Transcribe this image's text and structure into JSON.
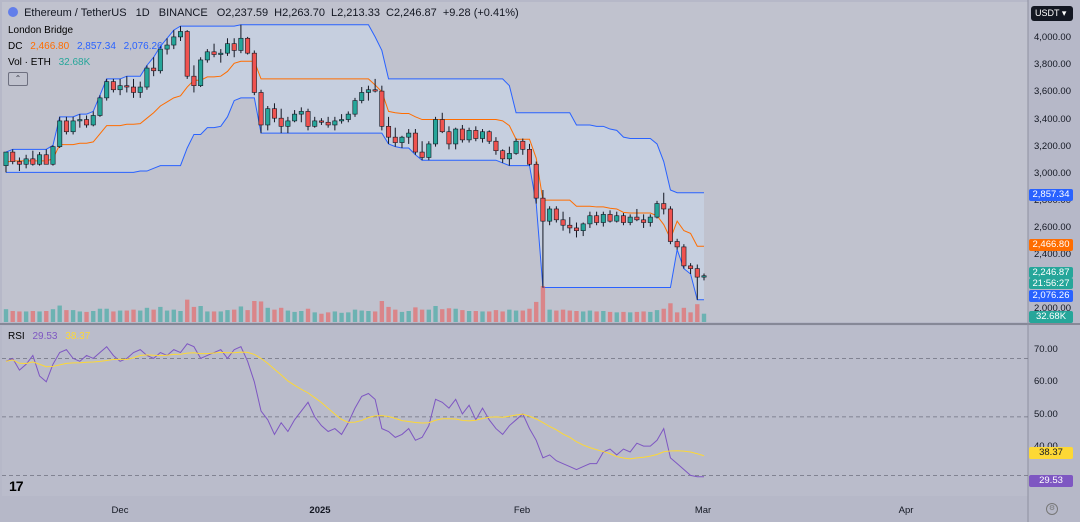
{
  "header": {
    "symbol": "Ethereum / TetherUS",
    "interval": "1D",
    "exchange": "BINANCE",
    "open": "O2,237.59",
    "high": "H2,263.70",
    "low": "L2,213.33",
    "close": "C2,246.87",
    "change": "+9.28 (+0.41%)",
    "change_color": "#089981",
    "quote_currency": "USDT",
    "icon": "ethereum-logo-icon"
  },
  "legend": {
    "line1": "London Bridge",
    "dc_label": "DC",
    "dc_basis": "2,466.80",
    "dc_upper": "2,857.34",
    "dc_lower": "2,076.26",
    "vol_label": "Vol · ETH",
    "vol_value": "32.68K"
  },
  "price_axis": {
    "ticks": [
      "4,000.00",
      "3,800.00",
      "3,600.00",
      "3,400.00",
      "3,200.00",
      "3,000.00",
      "2,800.00",
      "2,600.00",
      "2,400.00",
      "2,200.00",
      "2,000.00"
    ],
    "badges": {
      "upper": "2,857.34",
      "basis": "2,466.80",
      "last_price": "2,246.87",
      "countdown": "21:56:27",
      "lower": "2,076.26",
      "volume": "32.68K"
    }
  },
  "rsi": {
    "label": "RSI",
    "value": "29.53",
    "ma_value": "38.37",
    "ticks": [
      "70.00",
      "60.00",
      "50.00",
      "40.00"
    ]
  },
  "time_axis": {
    "labels": [
      "Dec",
      "2025",
      "Feb",
      "Mar",
      "Apr"
    ]
  },
  "colors": {
    "up": "#26a69a",
    "down": "#ef5350",
    "dc_upper": "#2962ff",
    "dc_lower": "#2962ff",
    "dc_basis": "#ff6d00",
    "dc_fill": "#c8d3e4",
    "rsi_line": "#7e57c2",
    "rsi_ma": "#fdd835",
    "rsi_badge": "#7e57c2",
    "rsi_ma_badge": "#fdd835"
  },
  "chart_data": {
    "type": "candlestick",
    "symbol": "ETH/USDT",
    "interval": "1D",
    "ylim": [
      1950,
      4120
    ],
    "candles_note": "approximate daily OHLC read from the chart, Nov 3 2024 - Feb 28 2025",
    "candles": [
      [
        3060,
        3160,
        3010,
        3160
      ],
      [
        3160,
        3180,
        3070,
        3090
      ],
      [
        3090,
        3120,
        3020,
        3070
      ],
      [
        3070,
        3140,
        3040,
        3110
      ],
      [
        3110,
        3170,
        3060,
        3070
      ],
      [
        3070,
        3160,
        3060,
        3140
      ],
      [
        3140,
        3180,
        3070,
        3070
      ],
      [
        3070,
        3210,
        3060,
        3200
      ],
      [
        3200,
        3420,
        3190,
        3390
      ],
      [
        3390,
        3420,
        3290,
        3310
      ],
      [
        3310,
        3420,
        3290,
        3390
      ],
      [
        3390,
        3440,
        3340,
        3400
      ],
      [
        3400,
        3430,
        3340,
        3360
      ],
      [
        3360,
        3460,
        3350,
        3430
      ],
      [
        3430,
        3580,
        3420,
        3560
      ],
      [
        3560,
        3700,
        3540,
        3680
      ],
      [
        3680,
        3700,
        3600,
        3620
      ],
      [
        3620,
        3700,
        3580,
        3650
      ],
      [
        3650,
        3720,
        3600,
        3640
      ],
      [
        3640,
        3700,
        3560,
        3600
      ],
      [
        3600,
        3680,
        3560,
        3640
      ],
      [
        3640,
        3800,
        3620,
        3780
      ],
      [
        3780,
        3860,
        3720,
        3760
      ],
      [
        3760,
        3940,
        3740,
        3920
      ],
      [
        3920,
        4000,
        3880,
        3950
      ],
      [
        3950,
        4060,
        3920,
        4010
      ],
      [
        4010,
        4090,
        3980,
        4050
      ],
      [
        4050,
        4060,
        3700,
        3720
      ],
      [
        3720,
        3800,
        3600,
        3650
      ],
      [
        3650,
        3860,
        3640,
        3840
      ],
      [
        3840,
        3920,
        3820,
        3900
      ],
      [
        3900,
        3960,
        3860,
        3880
      ],
      [
        3880,
        3920,
        3820,
        3890
      ],
      [
        3890,
        4000,
        3870,
        3960
      ],
      [
        3960,
        4000,
        3860,
        3910
      ],
      [
        3910,
        4100,
        3890,
        4000
      ],
      [
        4000,
        4010,
        3880,
        3890
      ],
      [
        3890,
        3910,
        3580,
        3600
      ],
      [
        3600,
        3620,
        3300,
        3360
      ],
      [
        3360,
        3500,
        3320,
        3480
      ],
      [
        3480,
        3520,
        3380,
        3410
      ],
      [
        3410,
        3480,
        3300,
        3350
      ],
      [
        3350,
        3420,
        3300,
        3390
      ],
      [
        3390,
        3470,
        3380,
        3440
      ],
      [
        3440,
        3490,
        3380,
        3460
      ],
      [
        3460,
        3480,
        3320,
        3350
      ],
      [
        3350,
        3420,
        3340,
        3390
      ],
      [
        3390,
        3410,
        3360,
        3380
      ],
      [
        3380,
        3420,
        3340,
        3360
      ],
      [
        3360,
        3420,
        3320,
        3390
      ],
      [
        3390,
        3440,
        3370,
        3400
      ],
      [
        3400,
        3460,
        3380,
        3440
      ],
      [
        3440,
        3560,
        3420,
        3540
      ],
      [
        3540,
        3640,
        3520,
        3600
      ],
      [
        3600,
        3650,
        3540,
        3620
      ],
      [
        3620,
        3700,
        3600,
        3610
      ],
      [
        3610,
        3650,
        3320,
        3350
      ],
      [
        3350,
        3420,
        3220,
        3270
      ],
      [
        3270,
        3340,
        3200,
        3230
      ],
      [
        3230,
        3280,
        3190,
        3270
      ],
      [
        3270,
        3330,
        3220,
        3300
      ],
      [
        3300,
        3330,
        3140,
        3160
      ],
      [
        3160,
        3240,
        3100,
        3120
      ],
      [
        3120,
        3240,
        3100,
        3220
      ],
      [
        3220,
        3420,
        3200,
        3400
      ],
      [
        3400,
        3450,
        3300,
        3310
      ],
      [
        3310,
        3350,
        3180,
        3220
      ],
      [
        3220,
        3340,
        3180,
        3330
      ],
      [
        3330,
        3360,
        3230,
        3250
      ],
      [
        3250,
        3340,
        3230,
        3320
      ],
      [
        3320,
        3350,
        3240,
        3260
      ],
      [
        3260,
        3330,
        3230,
        3310
      ],
      [
        3310,
        3320,
        3220,
        3240
      ],
      [
        3240,
        3270,
        3140,
        3170
      ],
      [
        3170,
        3180,
        3080,
        3110
      ],
      [
        3110,
        3200,
        3060,
        3150
      ],
      [
        3150,
        3260,
        3140,
        3240
      ],
      [
        3240,
        3260,
        3140,
        3180
      ],
      [
        3180,
        3220,
        3060,
        3070
      ],
      [
        3070,
        3090,
        2780,
        2820
      ],
      [
        2820,
        2880,
        2160,
        2650
      ],
      [
        2650,
        2760,
        2620,
        2740
      ],
      [
        2740,
        2760,
        2640,
        2660
      ],
      [
        2660,
        2720,
        2580,
        2620
      ],
      [
        2620,
        2680,
        2560,
        2600
      ],
      [
        2600,
        2640,
        2530,
        2580
      ],
      [
        2580,
        2640,
        2540,
        2630
      ],
      [
        2630,
        2720,
        2600,
        2690
      ],
      [
        2690,
        2720,
        2620,
        2640
      ],
      [
        2640,
        2720,
        2610,
        2700
      ],
      [
        2700,
        2730,
        2640,
        2650
      ],
      [
        2650,
        2720,
        2640,
        2690
      ],
      [
        2690,
        2710,
        2620,
        2640
      ],
      [
        2640,
        2700,
        2620,
        2680
      ],
      [
        2680,
        2740,
        2650,
        2660
      ],
      [
        2660,
        2700,
        2600,
        2640
      ],
      [
        2640,
        2700,
        2610,
        2680
      ],
      [
        2680,
        2800,
        2670,
        2780
      ],
      [
        2780,
        2860,
        2700,
        2740
      ],
      [
        2740,
        2760,
        2480,
        2500
      ],
      [
        2500,
        2520,
        2440,
        2460
      ],
      [
        2460,
        2480,
        2300,
        2320
      ],
      [
        2320,
        2340,
        2260,
        2300
      ],
      [
        2300,
        2330,
        2070,
        2237
      ],
      [
        2237,
        2264,
        2213,
        2247
      ]
    ],
    "donchian": {
      "upper_final": 2857.34,
      "basis_final": 2466.8,
      "lower_final": 2076.26
    },
    "volume_last": "32.68K",
    "rsi_series": [
      69,
      70,
      66,
      68,
      71,
      64,
      62,
      68,
      72,
      73,
      70,
      69,
      71,
      70,
      72,
      74,
      71,
      69,
      70,
      72,
      73,
      71,
      70,
      72,
      71,
      73,
      72,
      75,
      74,
      70,
      71,
      72,
      73,
      70,
      73,
      74,
      69,
      62,
      52,
      49,
      44,
      48,
      45,
      49,
      52,
      55,
      50,
      47,
      45,
      46,
      44,
      48,
      53,
      57,
      58,
      56,
      46,
      45,
      43,
      44,
      46,
      42,
      43,
      47,
      56,
      55,
      53,
      56,
      51,
      54,
      49,
      53,
      49,
      46,
      44,
      47,
      49,
      51,
      46,
      42,
      36,
      37,
      35,
      34,
      33,
      32,
      33,
      34,
      34,
      38,
      39,
      37,
      39,
      38,
      41,
      40,
      40,
      42,
      46,
      36,
      34,
      32,
      30,
      29.53,
      29.53
    ],
    "rsi_value": 29.53,
    "rsi_ma_value": 38.37,
    "rsi_levels": [
      70,
      50,
      30
    ],
    "x_labels": [
      "Dec",
      "2025",
      "Feb",
      "Mar",
      "Apr"
    ]
  }
}
